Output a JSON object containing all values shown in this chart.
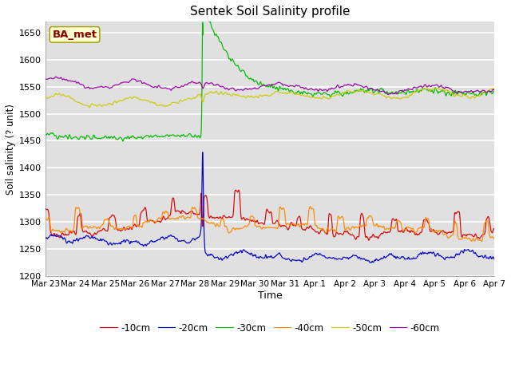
{
  "title": "Sentek Soil Salinity profile",
  "xlabel": "Time",
  "ylabel": "Soil salinity (? unit)",
  "ylim": [
    1200,
    1670
  ],
  "yticks": [
    1200,
    1250,
    1300,
    1350,
    1400,
    1450,
    1500,
    1550,
    1600,
    1650
  ],
  "x_tick_labels": [
    "Mar 23",
    "Mar 24",
    "Mar 25",
    "Mar 26",
    "Mar 27",
    "Mar 28",
    "Mar 29",
    "Mar 30",
    "Mar 31",
    "Apr 1",
    "Apr 2",
    "Apr 3",
    "Apr 4",
    "Apr 5",
    "Apr 6",
    "Apr 7"
  ],
  "legend_labels": [
    "-10cm",
    "-20cm",
    "-30cm",
    "-40cm",
    "-50cm",
    "-60cm"
  ],
  "legend_colors": [
    "#dd0000",
    "#0000cc",
    "#00bb00",
    "#ff8800",
    "#cccc00",
    "#9900aa"
  ],
  "station_label": "BA_met",
  "station_label_color": "#880000",
  "station_box_facecolor": "#ffffcc",
  "station_box_edgecolor": "#999900",
  "bg_color": "#e0e0e0",
  "grid_color": "#ffffff",
  "fig_facecolor": "#ffffff"
}
